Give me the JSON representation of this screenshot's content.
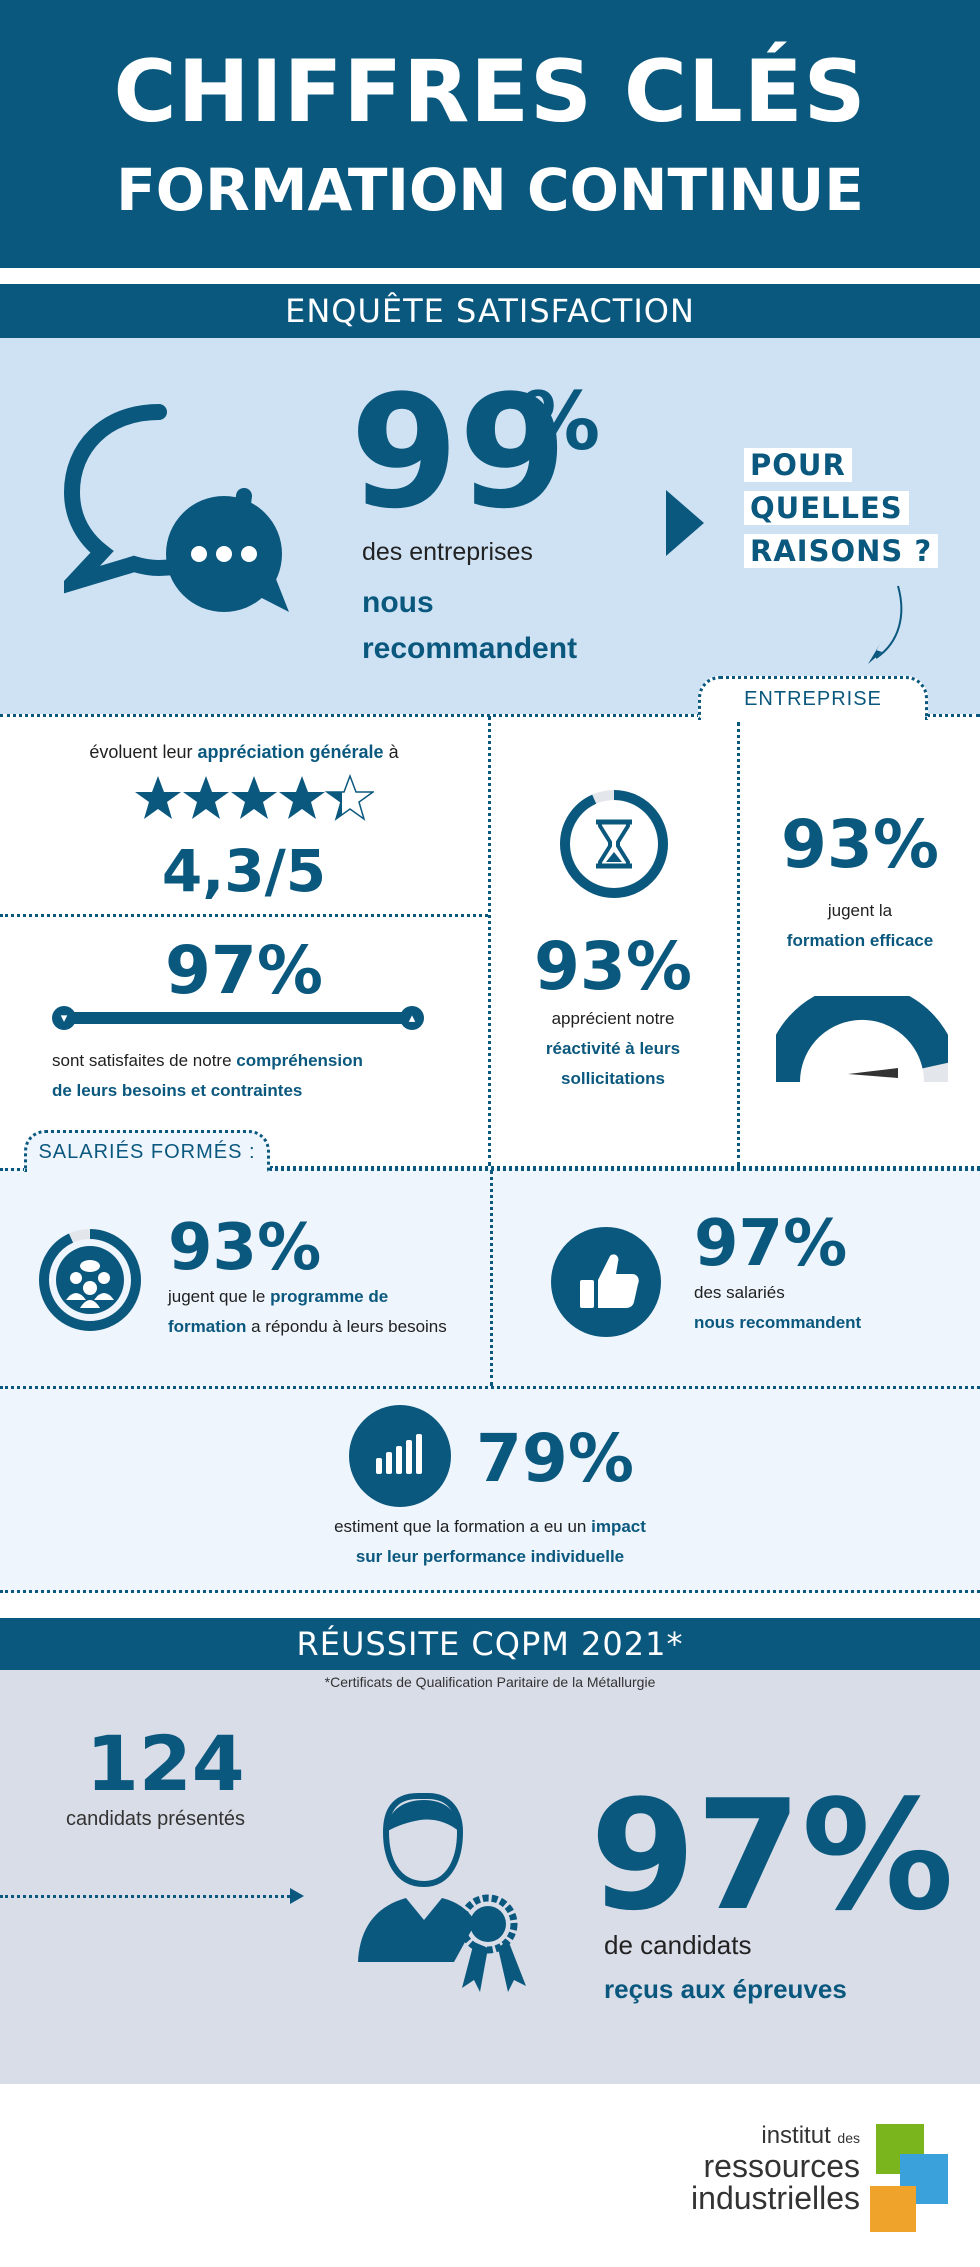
{
  "header": {
    "title": "CHIFFRES CLÉS",
    "subtitle": "FORMATION CONTINUE"
  },
  "survey": {
    "band_label": "ENQUÊTE SATISFACTION",
    "main_stat": {
      "value": "99",
      "unit": "%",
      "line1": "des entreprises",
      "line2": "nous",
      "line3": "recommandent"
    },
    "why": [
      "POUR",
      "QUELLES",
      "RAISONS ?"
    ],
    "entreprise_tab": "ENTREPRISE",
    "rating": {
      "prefix": "évoluent leur",
      "bold": "appréciation générale",
      "suffix": "à",
      "value": "4,3/5",
      "stars": 4.3,
      "max_stars": 5
    },
    "understanding": {
      "value": "97%",
      "progress": 0.97,
      "line1_plain": "sont satisfaites de notre",
      "line1_bold": "compréhension",
      "line2_bold": "de leurs besoins et contraintes"
    },
    "reactivity": {
      "value": "93%",
      "line1": "apprécient notre",
      "line2_bold": "réactivité à leurs",
      "line3_bold": "sollicitations"
    },
    "efficiency": {
      "value": "93%",
      "line1": "jugent la",
      "line2_bold": "formation efficace",
      "gauge": 0.93
    }
  },
  "employees": {
    "tab": "SALARIÉS FORMÉS :",
    "program": {
      "value": "93%",
      "line1_plain": "jugent que le",
      "line1_bold": "programme de",
      "line2_bold": "formation",
      "line2_plain": "a répondu à leurs besoins"
    },
    "recommend": {
      "value": "97%",
      "line1": "des salariés",
      "line2_bold": "nous recommandent"
    },
    "impact": {
      "value": "79%",
      "line1_plain": "estiment que la formation a eu un",
      "line1_bold": "impact",
      "line2_bold": "sur leur performance individuelle"
    }
  },
  "cqpm": {
    "band_label": "RÉUSSITE CQPM 2021*",
    "footnote": "*Certificats de Qualification Paritaire de la Métallurgie",
    "candidates": {
      "value": "124",
      "label": "candidats présentés"
    },
    "success": {
      "value": "97%",
      "line1": "de candidats",
      "line2_bold": "reçus aux épreuves"
    }
  },
  "footer": {
    "logo_line1": "institut",
    "logo_line1_small": "des",
    "logo_line2": "ressources",
    "logo_line3": "industrielles"
  },
  "colors": {
    "navy": "#0b587e",
    "light_blue": "#cfe2f4",
    "pale_blue": "#eef5fd",
    "grey_blue": "#d9dde8",
    "logo_green": "#7ab51d",
    "logo_blue": "#3aa1da",
    "logo_orange": "#f0a32a"
  }
}
